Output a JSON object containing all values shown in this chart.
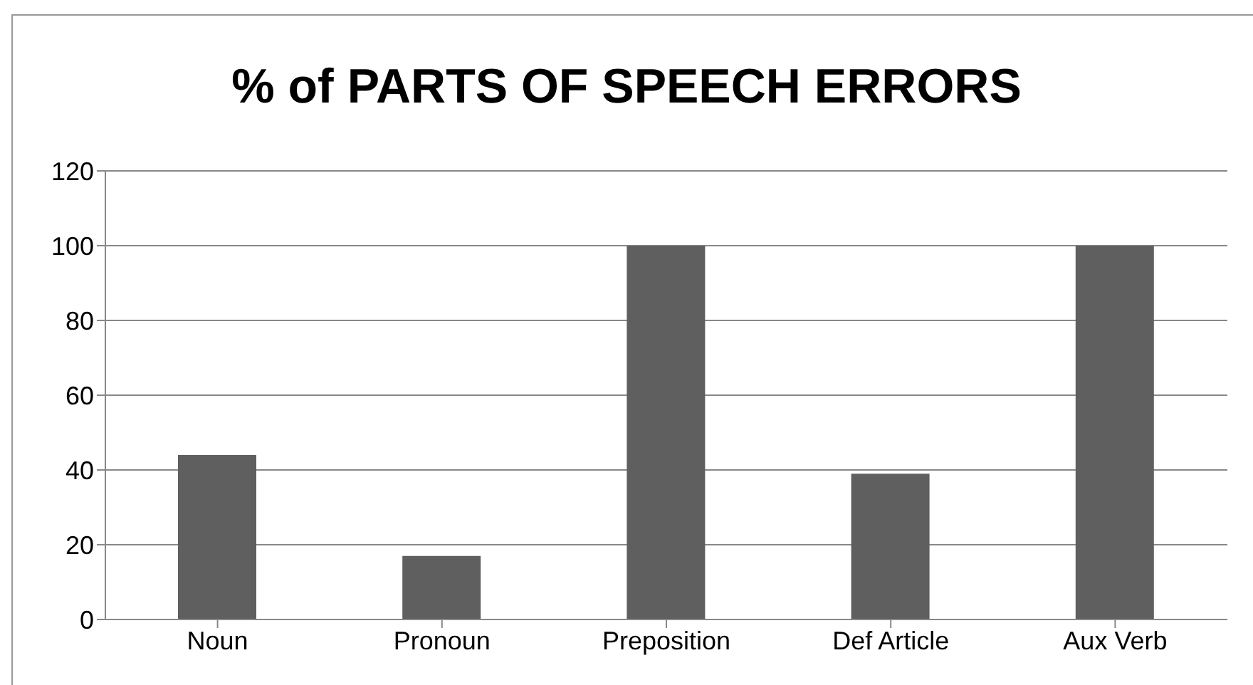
{
  "chart_data": {
    "type": "bar",
    "title": "% of PARTS OF SPEECH ERRORS",
    "categories": [
      "Noun",
      "Pronoun",
      "Preposition",
      "Def Article",
      "Aux Verb"
    ],
    "values": [
      44,
      17,
      100,
      39,
      100
    ],
    "color": "#5f5f5f",
    "ylim": [
      0,
      120
    ],
    "yticks": [
      0,
      20,
      40,
      60,
      80,
      100,
      120
    ],
    "grid": "y"
  }
}
